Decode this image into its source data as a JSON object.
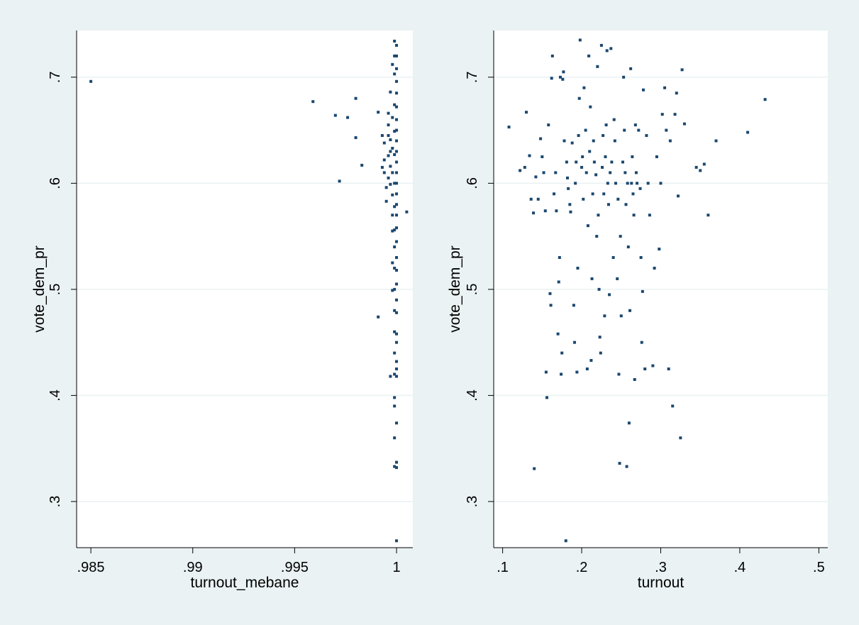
{
  "chart_data": [
    {
      "type": "scatter",
      "xlabel": "turnout_mebane",
      "ylabel": "vote_dem_pr",
      "xlim": [
        0.9843,
        1.0008
      ],
      "ylim": [
        0.2565,
        0.744
      ],
      "x_ticks": [
        {
          "value": 0.985,
          "label": ".985"
        },
        {
          "value": 0.99,
          "label": ".99"
        },
        {
          "value": 0.995,
          "label": ".995"
        },
        {
          "value": 1.0,
          "label": "1"
        }
      ],
      "y_ticks": [
        {
          "value": 0.3,
          "label": ".3"
        },
        {
          "value": 0.4,
          "label": ".4"
        },
        {
          "value": 0.5,
          "label": ".5"
        },
        {
          "value": 0.6,
          "label": ".6"
        },
        {
          "value": 0.7,
          "label": ".7"
        }
      ],
      "grid": true,
      "points": [
        [
          0.985,
          0.696
        ],
        [
          0.9959,
          0.677
        ],
        [
          0.997,
          0.664
        ],
        [
          0.9976,
          0.662
        ],
        [
          0.998,
          0.643
        ],
        [
          0.998,
          0.68
        ],
        [
          0.9972,
          0.602
        ],
        [
          0.9983,
          0.617
        ],
        [
          0.9991,
          0.474
        ],
        [
          0.9991,
          0.667
        ],
        [
          0.9993,
          0.615
        ],
        [
          0.9993,
          0.645
        ],
        [
          0.9994,
          0.638
        ],
        [
          0.9994,
          0.61
        ],
        [
          0.9995,
          0.596
        ],
        [
          0.9996,
          0.655
        ],
        [
          0.9996,
          0.626
        ],
        [
          0.9996,
          0.605
        ],
        [
          0.9997,
          0.599
        ],
        [
          0.9997,
          0.616
        ],
        [
          0.9997,
          0.641
        ],
        [
          0.9998,
          0.662
        ],
        [
          0.9998,
          0.633
        ],
        [
          0.9998,
          0.61
        ],
        [
          0.9998,
          0.589
        ],
        [
          0.9998,
          0.57
        ],
        [
          0.9999,
          0.6
        ],
        [
          0.9999,
          0.627
        ],
        [
          0.9999,
          0.649
        ],
        [
          0.9999,
          0.674
        ],
        [
          0.9999,
          0.703
        ],
        [
          0.9999,
          0.72
        ],
        [
          0.9999,
          0.734
        ],
        [
          0.9999,
          0.578
        ],
        [
          0.9999,
          0.556
        ],
        [
          0.9999,
          0.54
        ],
        [
          0.9999,
          0.52
        ],
        [
          0.9999,
          0.5
        ],
        [
          0.9999,
          0.48
        ],
        [
          0.9999,
          0.46
        ],
        [
          0.9999,
          0.44
        ],
        [
          0.9999,
          0.42
        ],
        [
          0.9999,
          0.398
        ],
        [
          0.9999,
          0.39
        ],
        [
          0.9999,
          0.36
        ],
        [
          0.9999,
          0.333
        ],
        [
          1.0,
          0.263
        ],
        [
          1.0,
          0.332
        ],
        [
          1.0,
          0.337
        ],
        [
          1.0,
          0.374
        ],
        [
          1.0,
          0.418
        ],
        [
          1.0,
          0.425
        ],
        [
          1.0,
          0.432
        ],
        [
          1.0,
          0.45
        ],
        [
          1.0,
          0.458
        ],
        [
          1.0,
          0.478
        ],
        [
          1.0,
          0.49
        ],
        [
          1.0,
          0.505
        ],
        [
          1.0,
          0.518
        ],
        [
          1.0,
          0.53
        ],
        [
          1.0,
          0.545
        ],
        [
          1.0,
          0.558
        ],
        [
          1.0,
          0.57
        ],
        [
          1.0,
          0.58
        ],
        [
          1.0,
          0.59
        ],
        [
          1.0,
          0.6
        ],
        [
          1.0,
          0.61
        ],
        [
          1.0,
          0.62
        ],
        [
          1.0,
          0.63
        ],
        [
          1.0,
          0.64
        ],
        [
          1.0,
          0.65
        ],
        [
          1.0,
          0.66
        ],
        [
          1.0,
          0.672
        ],
        [
          1.0,
          0.685
        ],
        [
          1.0,
          0.696
        ],
        [
          1.0,
          0.708
        ],
        [
          1.0,
          0.72
        ],
        [
          1.0,
          0.73
        ],
        [
          1.0005,
          0.573
        ],
        [
          0.9995,
          0.583
        ],
        [
          0.9996,
          0.666
        ],
        [
          0.9997,
          0.686
        ],
        [
          0.9998,
          0.712
        ],
        [
          0.9998,
          0.555
        ],
        [
          0.9998,
          0.525
        ],
        [
          0.9998,
          0.499
        ],
        [
          0.9997,
          0.418
        ],
        [
          0.9997,
          0.63
        ],
        [
          0.9996,
          0.645
        ],
        [
          0.9994,
          0.622
        ]
      ]
    },
    {
      "type": "scatter",
      "xlabel": "turnout",
      "ylabel": "vote_dem_pr",
      "xlim": [
        0.0887,
        0.5113
      ],
      "ylim": [
        0.2565,
        0.744
      ],
      "x_ticks": [
        {
          "value": 0.1,
          "label": ".1"
        },
        {
          "value": 0.2,
          "label": ".2"
        },
        {
          "value": 0.3,
          "label": ".3"
        },
        {
          "value": 0.4,
          "label": ".4"
        },
        {
          "value": 0.5,
          "label": ".5"
        }
      ],
      "y_ticks": [
        {
          "value": 0.3,
          "label": ".3"
        },
        {
          "value": 0.4,
          "label": ".4"
        },
        {
          "value": 0.5,
          "label": ".5"
        },
        {
          "value": 0.6,
          "label": ".6"
        },
        {
          "value": 0.7,
          "label": ".7"
        }
      ],
      "grid": true,
      "points": [
        [
          0.108,
          0.653
        ],
        [
          0.122,
          0.612
        ],
        [
          0.128,
          0.615
        ],
        [
          0.13,
          0.667
        ],
        [
          0.134,
          0.626
        ],
        [
          0.136,
          0.585
        ],
        [
          0.139,
          0.572
        ],
        [
          0.14,
          0.331
        ],
        [
          0.142,
          0.606
        ],
        [
          0.145,
          0.585
        ],
        [
          0.148,
          0.642
        ],
        [
          0.15,
          0.625
        ],
        [
          0.152,
          0.61
        ],
        [
          0.154,
          0.574
        ],
        [
          0.155,
          0.422
        ],
        [
          0.156,
          0.398
        ],
        [
          0.158,
          0.655
        ],
        [
          0.16,
          0.496
        ],
        [
          0.161,
          0.485
        ],
        [
          0.162,
          0.699
        ],
        [
          0.163,
          0.72
        ],
        [
          0.165,
          0.59
        ],
        [
          0.167,
          0.61
        ],
        [
          0.168,
          0.574
        ],
        [
          0.17,
          0.458
        ],
        [
          0.171,
          0.507
        ],
        [
          0.172,
          0.53
        ],
        [
          0.173,
          0.7
        ],
        [
          0.174,
          0.42
        ],
        [
          0.175,
          0.44
        ],
        [
          0.176,
          0.698
        ],
        [
          0.177,
          0.705
        ],
        [
          0.178,
          0.64
        ],
        [
          0.18,
          0.263
        ],
        [
          0.181,
          0.62
        ],
        [
          0.182,
          0.605
        ],
        [
          0.183,
          0.595
        ],
        [
          0.185,
          0.58
        ],
        [
          0.186,
          0.573
        ],
        [
          0.188,
          0.638
        ],
        [
          0.19,
          0.485
        ],
        [
          0.191,
          0.45
        ],
        [
          0.192,
          0.6
        ],
        [
          0.193,
          0.62
        ],
        [
          0.194,
          0.422
        ],
        [
          0.195,
          0.52
        ],
        [
          0.196,
          0.645
        ],
        [
          0.197,
          0.68
        ],
        [
          0.198,
          0.735
        ],
        [
          0.2,
          0.615
        ],
        [
          0.201,
          0.625
        ],
        [
          0.202,
          0.585
        ],
        [
          0.203,
          0.69
        ],
        [
          0.205,
          0.65
        ],
        [
          0.206,
          0.61
        ],
        [
          0.207,
          0.425
        ],
        [
          0.208,
          0.56
        ],
        [
          0.209,
          0.72
        ],
        [
          0.21,
          0.63
        ],
        [
          0.211,
          0.672
        ],
        [
          0.212,
          0.433
        ],
        [
          0.213,
          0.51
        ],
        [
          0.214,
          0.59
        ],
        [
          0.215,
          0.64
        ],
        [
          0.216,
          0.62
        ],
        [
          0.218,
          0.608
        ],
        [
          0.219,
          0.55
        ],
        [
          0.22,
          0.71
        ],
        [
          0.221,
          0.57
        ],
        [
          0.222,
          0.5
        ],
        [
          0.223,
          0.455
        ],
        [
          0.224,
          0.44
        ],
        [
          0.225,
          0.73
        ],
        [
          0.226,
          0.615
        ],
        [
          0.227,
          0.645
        ],
        [
          0.228,
          0.59
        ],
        [
          0.229,
          0.475
        ],
        [
          0.23,
          0.625
        ],
        [
          0.231,
          0.655
        ],
        [
          0.232,
          0.725
        ],
        [
          0.233,
          0.6
        ],
        [
          0.234,
          0.58
        ],
        [
          0.235,
          0.495
        ],
        [
          0.236,
          0.61
        ],
        [
          0.237,
          0.727
        ],
        [
          0.238,
          0.62
        ],
        [
          0.24,
          0.53
        ],
        [
          0.241,
          0.66
        ],
        [
          0.242,
          0.64
        ],
        [
          0.243,
          0.6
        ],
        [
          0.245,
          0.51
        ],
        [
          0.246,
          0.585
        ],
        [
          0.247,
          0.42
        ],
        [
          0.248,
          0.336
        ],
        [
          0.249,
          0.55
        ],
        [
          0.25,
          0.475
        ],
        [
          0.252,
          0.62
        ],
        [
          0.253,
          0.7
        ],
        [
          0.254,
          0.65
        ],
        [
          0.255,
          0.61
        ],
        [
          0.256,
          0.58
        ],
        [
          0.257,
          0.333
        ],
        [
          0.258,
          0.6
        ],
        [
          0.259,
          0.54
        ],
        [
          0.26,
          0.374
        ],
        [
          0.261,
          0.48
        ],
        [
          0.262,
          0.708
        ],
        [
          0.263,
          0.6
        ],
        [
          0.264,
          0.625
        ],
        [
          0.265,
          0.59
        ],
        [
          0.266,
          0.57
        ],
        [
          0.267,
          0.415
        ],
        [
          0.268,
          0.655
        ],
        [
          0.269,
          0.61
        ],
        [
          0.27,
          0.6
        ],
        [
          0.272,
          0.65
        ],
        [
          0.274,
          0.595
        ],
        [
          0.275,
          0.53
        ],
        [
          0.276,
          0.45
        ],
        [
          0.277,
          0.498
        ],
        [
          0.278,
          0.688
        ],
        [
          0.28,
          0.425
        ],
        [
          0.282,
          0.645
        ],
        [
          0.284,
          0.6
        ],
        [
          0.286,
          0.57
        ],
        [
          0.29,
          0.428
        ],
        [
          0.292,
          0.52
        ],
        [
          0.295,
          0.625
        ],
        [
          0.298,
          0.538
        ],
        [
          0.3,
          0.6
        ],
        [
          0.302,
          0.665
        ],
        [
          0.305,
          0.69
        ],
        [
          0.307,
          0.65
        ],
        [
          0.31,
          0.425
        ],
        [
          0.312,
          0.64
        ],
        [
          0.315,
          0.39
        ],
        [
          0.318,
          0.665
        ],
        [
          0.32,
          0.685
        ],
        [
          0.322,
          0.588
        ],
        [
          0.325,
          0.36
        ],
        [
          0.327,
          0.707
        ],
        [
          0.33,
          0.656
        ],
        [
          0.345,
          0.615
        ],
        [
          0.35,
          0.612
        ],
        [
          0.355,
          0.618
        ],
        [
          0.36,
          0.57
        ],
        [
          0.37,
          0.64
        ],
        [
          0.41,
          0.648
        ],
        [
          0.432,
          0.679
        ]
      ]
    }
  ]
}
